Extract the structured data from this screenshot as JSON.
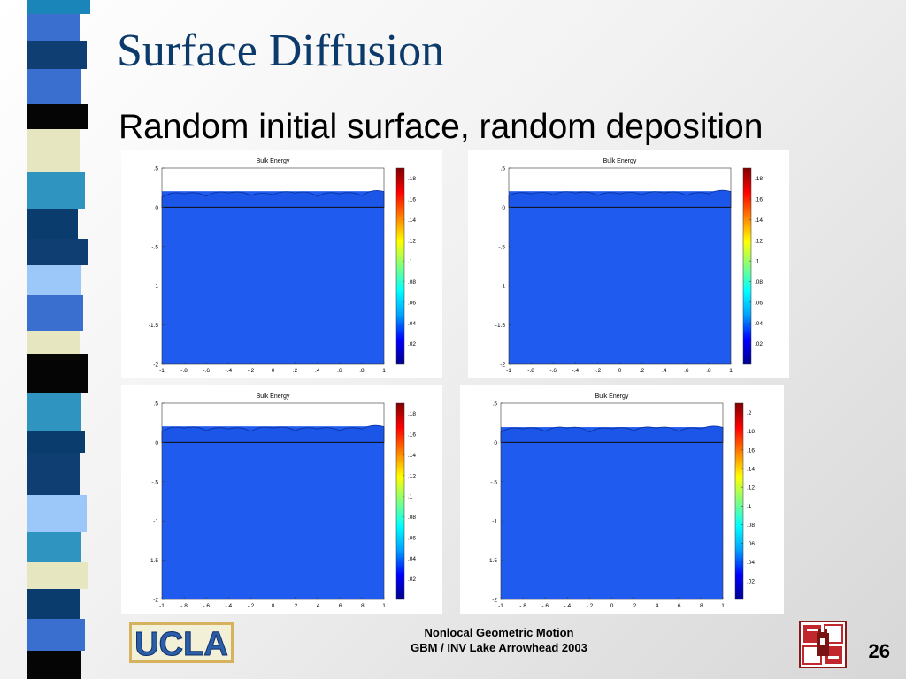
{
  "slide": {
    "title": "Surface Diffusion",
    "subtitle": "Random initial surface, random deposition",
    "footer_line1": "Nonlocal Geometric Motion",
    "footer_line2": "GBM / INV Lake Arrowhead 2003",
    "page_number": "26",
    "logo_left_text": "UCLA",
    "logo_right": "university-seal"
  },
  "colors": {
    "title": "#0c3b6b",
    "stripe": [
      "#1a85b8",
      "#0f3f72",
      "#3a6fd0",
      "#050505",
      "#e6e6c0",
      "#2f95c0",
      "#0a3d6e",
      "#9bc8f8"
    ],
    "bulk_fill": "#1f5bef",
    "colormap": [
      "#00008f",
      "#0000ff",
      "#00a0ff",
      "#00ffff",
      "#80ff80",
      "#ffff00",
      "#ff8000",
      "#ff0000",
      "#800000"
    ]
  },
  "chart_data": [
    {
      "type": "heatmap",
      "title": "Bulk Energy",
      "xlim": [
        -1,
        1
      ],
      "ylim": [
        -2,
        0.5
      ],
      "x_ticks": [
        -1,
        -0.8,
        -0.6,
        -0.4,
        -0.2,
        0,
        0.2,
        0.4,
        0.6,
        0.8,
        1
      ],
      "y_ticks": [
        0.5,
        0,
        -0.5,
        -1,
        -1.5,
        -2
      ],
      "colorbar_ticks": [
        0.18,
        0.16,
        0.14,
        0.12,
        0.1,
        0.08,
        0.06,
        0.04,
        0.02
      ],
      "colorbar_max": 0.19,
      "interface_y": 0,
      "surface_mean_y": 0.16,
      "surface_amp": 0.04,
      "surface_x": [
        -1,
        -0.8,
        -0.6,
        -0.4,
        -0.2,
        0,
        0.2,
        0.4,
        0.6,
        0.8,
        1
      ],
      "surface_y": [
        0.13,
        0.17,
        0.14,
        0.18,
        0.15,
        0.16,
        0.18,
        0.14,
        0.17,
        0.15,
        0.2
      ]
    },
    {
      "type": "heatmap",
      "title": "Bulk Energy",
      "xlim": [
        -1,
        1
      ],
      "ylim": [
        -2,
        0.5
      ],
      "x_ticks": [
        -1,
        -0.8,
        -0.6,
        -0.4,
        -0.2,
        0,
        0.2,
        0.4,
        0.6,
        0.8,
        1
      ],
      "y_ticks": [
        0.5,
        0,
        -0.5,
        -1,
        -1.5,
        -2
      ],
      "colorbar_ticks": [
        0.18,
        0.16,
        0.14,
        0.12,
        0.1,
        0.08,
        0.06,
        0.04,
        0.02
      ],
      "colorbar_max": 0.19,
      "interface_y": 0,
      "surface_mean_y": 0.16,
      "surface_amp": 0.03,
      "surface_x": [
        -1,
        -0.8,
        -0.6,
        -0.4,
        -0.2,
        0,
        0.2,
        0.4,
        0.6,
        0.8,
        1
      ],
      "surface_y": [
        0.15,
        0.17,
        0.16,
        0.18,
        0.15,
        0.17,
        0.16,
        0.18,
        0.15,
        0.17,
        0.2
      ]
    },
    {
      "type": "heatmap",
      "title": "Bulk Energy",
      "xlim": [
        -1,
        1
      ],
      "ylim": [
        -2,
        0.5
      ],
      "x_ticks": [
        -1,
        -0.8,
        -0.6,
        -0.4,
        -0.2,
        0,
        0.2,
        0.4,
        0.6,
        0.8,
        1
      ],
      "y_ticks": [
        0.5,
        0,
        -0.5,
        -1,
        -1.5,
        -2
      ],
      "colorbar_ticks": [
        0.18,
        0.16,
        0.14,
        0.12,
        0.1,
        0.08,
        0.06,
        0.04,
        0.02
      ],
      "colorbar_max": 0.19,
      "interface_y": 0,
      "surface_mean_y": 0.16,
      "surface_amp": 0.04,
      "surface_x": [
        -1,
        -0.8,
        -0.6,
        -0.4,
        -0.2,
        0,
        0.2,
        0.4,
        0.6,
        0.8,
        1
      ],
      "surface_y": [
        0.14,
        0.18,
        0.15,
        0.17,
        0.14,
        0.18,
        0.15,
        0.17,
        0.15,
        0.17,
        0.2
      ]
    },
    {
      "type": "heatmap",
      "title": "Bulk Energy",
      "xlim": [
        -1,
        1
      ],
      "ylim": [
        -2,
        0.5
      ],
      "x_ticks": [
        -1,
        -0.8,
        -0.6,
        -0.4,
        -0.2,
        0,
        0.2,
        0.4,
        0.6,
        0.8,
        1
      ],
      "y_ticks": [
        0.5,
        0,
        -0.5,
        -1,
        -1.5,
        -2
      ],
      "colorbar_ticks": [
        0.2,
        0.18,
        0.16,
        0.14,
        0.12,
        0.1,
        0.08,
        0.06,
        0.04,
        0.02
      ],
      "colorbar_max": 0.21,
      "interface_y": 0,
      "surface_mean_y": 0.15,
      "surface_amp": 0.04,
      "surface_x": [
        -1,
        -0.8,
        -0.6,
        -0.4,
        -0.2,
        0,
        0.2,
        0.4,
        0.6,
        0.8,
        1
      ],
      "surface_y": [
        0.13,
        0.17,
        0.14,
        0.18,
        0.13,
        0.17,
        0.15,
        0.18,
        0.14,
        0.17,
        0.19
      ]
    }
  ]
}
